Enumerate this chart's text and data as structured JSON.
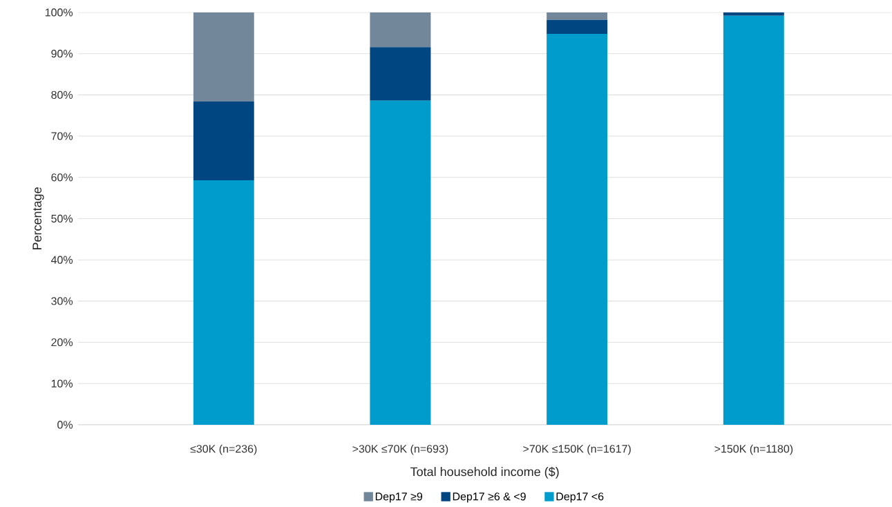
{
  "chart_data": {
    "type": "bar",
    "stacked": true,
    "xlabel": "Total household income ($)",
    "ylabel": "Percentage",
    "categories": [
      "≤30K (n=236)",
      ">30K ≤70K (n=693)",
      ">70K ≤150K (n=1617)",
      ">150K (n=1180)"
    ],
    "series": [
      {
        "name": "Dep17 <6",
        "color": "#009ccc",
        "values": [
          59.3,
          78.6,
          94.8,
          99.2
        ]
      },
      {
        "name": "Dep17 ≥6 & <9",
        "color": "#004680",
        "values": [
          19.1,
          13.0,
          3.4,
          0.8
        ]
      },
      {
        "name": "Dep17 ≥9",
        "color": "#72889a",
        "values": [
          21.6,
          8.4,
          1.8,
          0
        ]
      }
    ],
    "ylim": [
      0,
      100
    ],
    "yticks": [
      {
        "value": 0,
        "label": "0%"
      },
      {
        "value": 10,
        "label": "10%"
      },
      {
        "value": 20,
        "label": "20%"
      },
      {
        "value": 30,
        "label": "30%"
      },
      {
        "value": 40,
        "label": "40%"
      },
      {
        "value": 50,
        "label": "50%"
      },
      {
        "value": 60,
        "label": "60%"
      },
      {
        "value": 70,
        "label": "70%"
      },
      {
        "value": 80,
        "label": "80%"
      },
      {
        "value": 90,
        "label": "90%"
      },
      {
        "value": 100,
        "label": "100%"
      }
    ],
    "grid": "y",
    "legend": "bottom"
  }
}
